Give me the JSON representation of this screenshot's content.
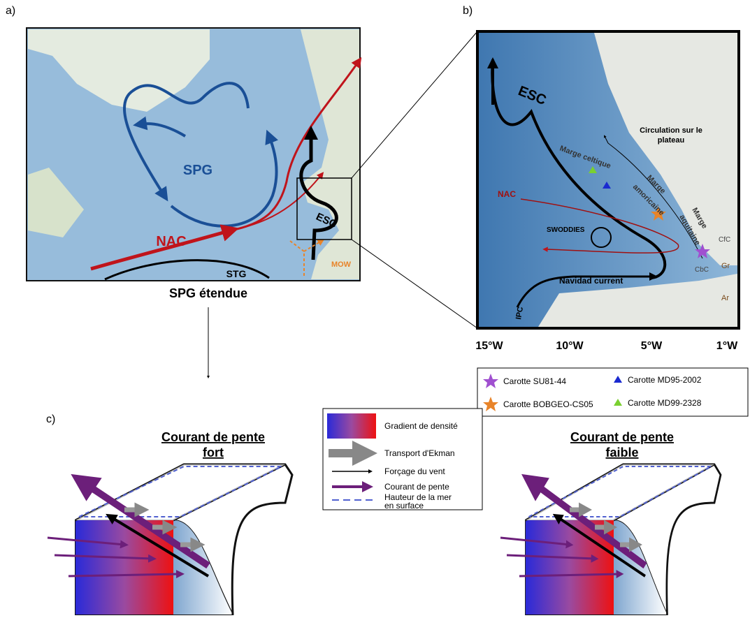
{
  "panel_a": {
    "label": "a)",
    "spg": "SPG",
    "nac": "NAC",
    "esc": "ESC",
    "stg": "STG",
    "mow": "MOW",
    "caption": "SPG étendue"
  },
  "panel_b": {
    "label": "b)",
    "esc": "ESC",
    "celtic": "Marge celtique",
    "shelf": [
      "Circulation sur le",
      "plateau"
    ],
    "nac": "NAC",
    "armorican": [
      "Marge",
      "amoricaine"
    ],
    "aquitaine": [
      "Marge",
      "aquitaine"
    ],
    "swoddies": "SWODDIES",
    "cfc": "CfC",
    "gr": "Gr",
    "cbc": "CbC",
    "ar": "Ar",
    "navidad": "Navidad current",
    "ipc": "IPC",
    "longitudes": [
      "15°W",
      "10°W",
      "5°W",
      "1°W"
    ]
  },
  "core_legend": [
    "Carotte SU81-44",
    "Carotte MD95-2002",
    "Carotte BOBGEO-CS05",
    "Carotte MD99-2328"
  ],
  "panel_c": {
    "label": "c)",
    "strong_title": [
      "Courant de pente",
      "fort"
    ],
    "weak_title": [
      "Courant de pente",
      "faible"
    ],
    "legend": {
      "gradient": "Gradient de densité",
      "ekman": "Transport d'Ekman",
      "wind": "Forçage du vent",
      "slope_current": "Courant de pente",
      "sea_level": [
        "Hauteur de la mer",
        "en surface"
      ]
    }
  }
}
